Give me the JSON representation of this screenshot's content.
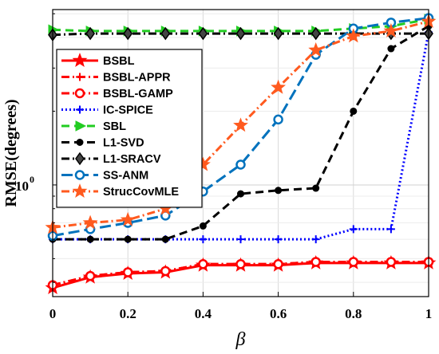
{
  "chart_data": {
    "type": "line",
    "xlabel": "β",
    "ylabel": "RMSE(degrees)",
    "xlim": [
      0,
      1
    ],
    "ylim": [
      0.35,
      5.2
    ],
    "yscale": "log",
    "xticks": [
      "0",
      "0.2",
      "0.4",
      "0.6",
      "0.8",
      "1"
    ],
    "yticks": [
      {
        "value": 1,
        "label": "10",
        "exp": "0"
      }
    ],
    "grid": true,
    "legend_position": "top-left",
    "x": [
      0,
      0.1,
      0.2,
      0.3,
      0.4,
      0.5,
      0.6,
      0.7,
      0.8,
      0.9,
      1.0
    ],
    "series": [
      {
        "name": "BSBL",
        "color": "#ff0000",
        "dash": "solid",
        "marker": "star",
        "values": [
          0.38,
          0.42,
          0.435,
          0.44,
          0.47,
          0.47,
          0.47,
          0.48,
          0.48,
          0.48,
          0.48
        ]
      },
      {
        "name": "BSBL-APPR",
        "color": "#ff0000",
        "dash": "dashdot",
        "marker": "plus",
        "values": [
          0.39,
          0.425,
          0.44,
          0.445,
          0.475,
          0.475,
          0.475,
          0.485,
          0.485,
          0.485,
          0.485
        ]
      },
      {
        "name": "BSBL-GAMP",
        "color": "#ff0000",
        "dash": "dashdot",
        "marker": "circle",
        "values": [
          0.39,
          0.425,
          0.44,
          0.445,
          0.475,
          0.475,
          0.475,
          0.485,
          0.485,
          0.485,
          0.485
        ]
      },
      {
        "name": "IC-SPICE",
        "color": "#0000ff",
        "dash": "dotted",
        "marker": "plus",
        "values": [
          0.6,
          0.6,
          0.6,
          0.6,
          0.6,
          0.6,
          0.6,
          0.6,
          0.66,
          0.66,
          4.2
        ]
      },
      {
        "name": "SBL",
        "color": "#22cc22",
        "dash": "dashed",
        "marker": "triangle-right",
        "values": [
          4.3,
          4.25,
          4.25,
          4.25,
          4.25,
          4.25,
          4.25,
          4.25,
          4.35,
          4.45,
          4.75
        ]
      },
      {
        "name": "L1-SVD",
        "color": "#000000",
        "dash": "dashed",
        "marker": "dot",
        "values": [
          0.6,
          0.6,
          0.6,
          0.6,
          0.68,
          0.92,
          0.95,
          0.97,
          2.0,
          3.6,
          4.45
        ]
      },
      {
        "name": "L1-SRACV",
        "color": "#000000",
        "dash": "dashdot",
        "marker": "diamond",
        "values": [
          4.1,
          4.15,
          4.15,
          4.15,
          4.15,
          4.15,
          4.15,
          4.15,
          4.15,
          4.15,
          4.15
        ]
      },
      {
        "name": "SS-ANM",
        "color": "#0072bd",
        "dash": "longdash",
        "marker": "circle",
        "values": [
          0.62,
          0.66,
          0.7,
          0.75,
          0.94,
          1.21,
          1.85,
          3.4,
          4.35,
          4.6,
          4.8
        ]
      },
      {
        "name": "StrucCovMLE",
        "color": "#ff5a1f",
        "dash": "dashdot",
        "marker": "star",
        "values": [
          0.67,
          0.7,
          0.72,
          0.8,
          1.21,
          1.75,
          2.5,
          3.55,
          4.05,
          4.25,
          4.65
        ]
      }
    ]
  }
}
